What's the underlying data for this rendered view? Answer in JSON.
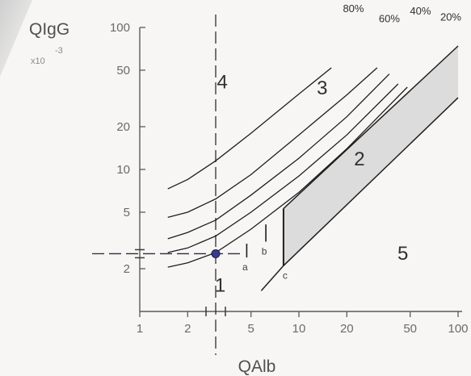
{
  "chart_data": {
    "type": "line",
    "title": "",
    "ylabel": "QIgG",
    "ylabel_multiplier": "x10",
    "ylabel_multiplier_exponent": "-3",
    "xlabel": "QAlb",
    "x_scale": "log",
    "y_scale": "log",
    "xlim": [
      1,
      100
    ],
    "ylim": [
      1,
      100
    ],
    "x_ticks": [
      1,
      2,
      5,
      10,
      20,
      50,
      100
    ],
    "x_tick_labels": [
      "1",
      "2",
      "5",
      "10",
      "20",
      "50",
      "100"
    ],
    "y_ticks": [
      2,
      5,
      10,
      20,
      50,
      100
    ],
    "y_tick_labels": [
      "2",
      "5",
      "10",
      "20",
      "50",
      "100"
    ],
    "grid": false,
    "series": [
      {
        "label": "80%",
        "x": [
          1.5,
          2,
          3,
          5,
          10,
          16
        ],
        "y": [
          7.3,
          8.5,
          11.5,
          18,
          34,
          52
        ]
      },
      {
        "label": "60%",
        "x": [
          1.5,
          2,
          3,
          5,
          10,
          20,
          31
        ],
        "y": [
          4.6,
          5.0,
          6.2,
          9.2,
          17.5,
          33.5,
          52
        ]
      },
      {
        "label": "40%",
        "x": [
          1.5,
          2,
          3,
          5,
          10,
          20,
          37
        ],
        "y": [
          3.25,
          3.6,
          4.4,
          6.6,
          12,
          23.5,
          47
        ]
      },
      {
        "label": "",
        "x": [
          1.5,
          2,
          3,
          5,
          10,
          20,
          42
        ],
        "y": [
          2.6,
          2.8,
          3.4,
          5.0,
          9.0,
          17.5,
          40
        ]
      },
      {
        "label": "",
        "x": [
          1.5,
          2,
          3,
          5,
          10,
          20,
          48
        ],
        "y": [
          2.05,
          2.2,
          2.6,
          3.8,
          6.9,
          14,
          38
        ]
      }
    ],
    "upper_reference_line": {
      "x": [
        8.0,
        100
      ],
      "y": [
        5.3,
        74
      ]
    },
    "lower_reference_line": {
      "x": [
        5.8,
        8.0,
        100
      ],
      "y": [
        1.4,
        2.1,
        32
      ]
    },
    "shaded_region": {
      "x_start": 8.0,
      "label": "2"
    },
    "vertical_markers": [
      {
        "label": "a",
        "x": 4.7,
        "y_range": [
          2.4,
          3.0
        ]
      },
      {
        "label": "b",
        "x": 6.2,
        "y_range": [
          3.1,
          4.1
        ]
      },
      {
        "label": "c",
        "x": 8.0,
        "y_range": [
          2.1,
          5.3
        ]
      }
    ],
    "reference_lines": {
      "vertical_x": 3.0,
      "horizontal_y": 2.55
    },
    "patient_point": {
      "x": 3.0,
      "y": 2.55
    },
    "region_labels": [
      {
        "text": "1",
        "x": 3.2,
        "y": 1.55
      },
      {
        "text": "2",
        "x": 24,
        "y": 12
      },
      {
        "text": "3",
        "x": 14,
        "y": 38
      },
      {
        "text": "4",
        "x": 3.3,
        "y": 42
      },
      {
        "text": "5",
        "x": 45,
        "y": 2.6
      }
    ],
    "percent_labels": [
      {
        "text": "80%",
        "x": 22,
        "y": 135
      },
      {
        "text": "60%",
        "x": 37,
        "y": 115
      },
      {
        "text": "40%",
        "x": 58,
        "y": 130
      },
      {
        "text": "20%",
        "x": 90,
        "y": 118
      }
    ],
    "colors": {
      "lines": "#1e1e1e",
      "point": "#3a3a8c",
      "shading": "#dcdcdc",
      "axis": "#5a5a5a"
    }
  }
}
